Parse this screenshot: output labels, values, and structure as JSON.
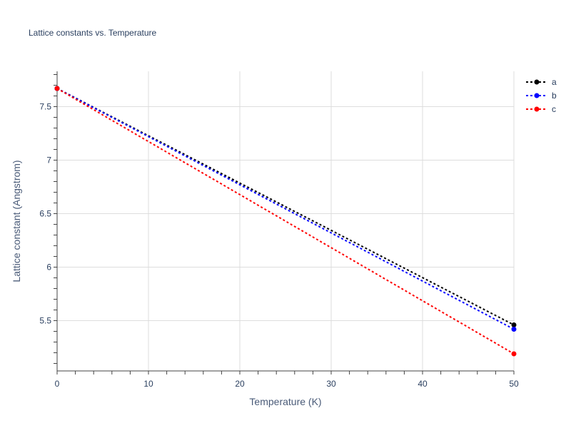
{
  "chart_data": {
    "type": "line",
    "title": "Lattice constants vs. Temperature",
    "xlabel": "Temperature (K)",
    "ylabel": "Lattice constant (Angstrom)",
    "xlim": [
      0,
      50
    ],
    "ylim": [
      5.03,
      7.83
    ],
    "xticks": [
      0,
      10,
      20,
      30,
      40,
      50
    ],
    "yticks": [
      5.5,
      6,
      6.5,
      7,
      7.5
    ],
    "xtick_labels": [
      "0",
      "10",
      "20",
      "30",
      "40",
      "50"
    ],
    "ytick_labels": [
      "5.5",
      "6",
      "6.5",
      "7",
      "7.5"
    ],
    "grid": true,
    "legend_position": "top-right",
    "series": [
      {
        "name": "a",
        "color": "#000000",
        "x": [
          0,
          50
        ],
        "y": [
          7.67,
          5.46
        ]
      },
      {
        "name": "b",
        "color": "#0000ff",
        "x": [
          0,
          50
        ],
        "y": [
          7.67,
          5.42
        ]
      },
      {
        "name": "c",
        "color": "#ff0000",
        "x": [
          0,
          50
        ],
        "y": [
          7.67,
          5.19
        ]
      }
    ]
  }
}
